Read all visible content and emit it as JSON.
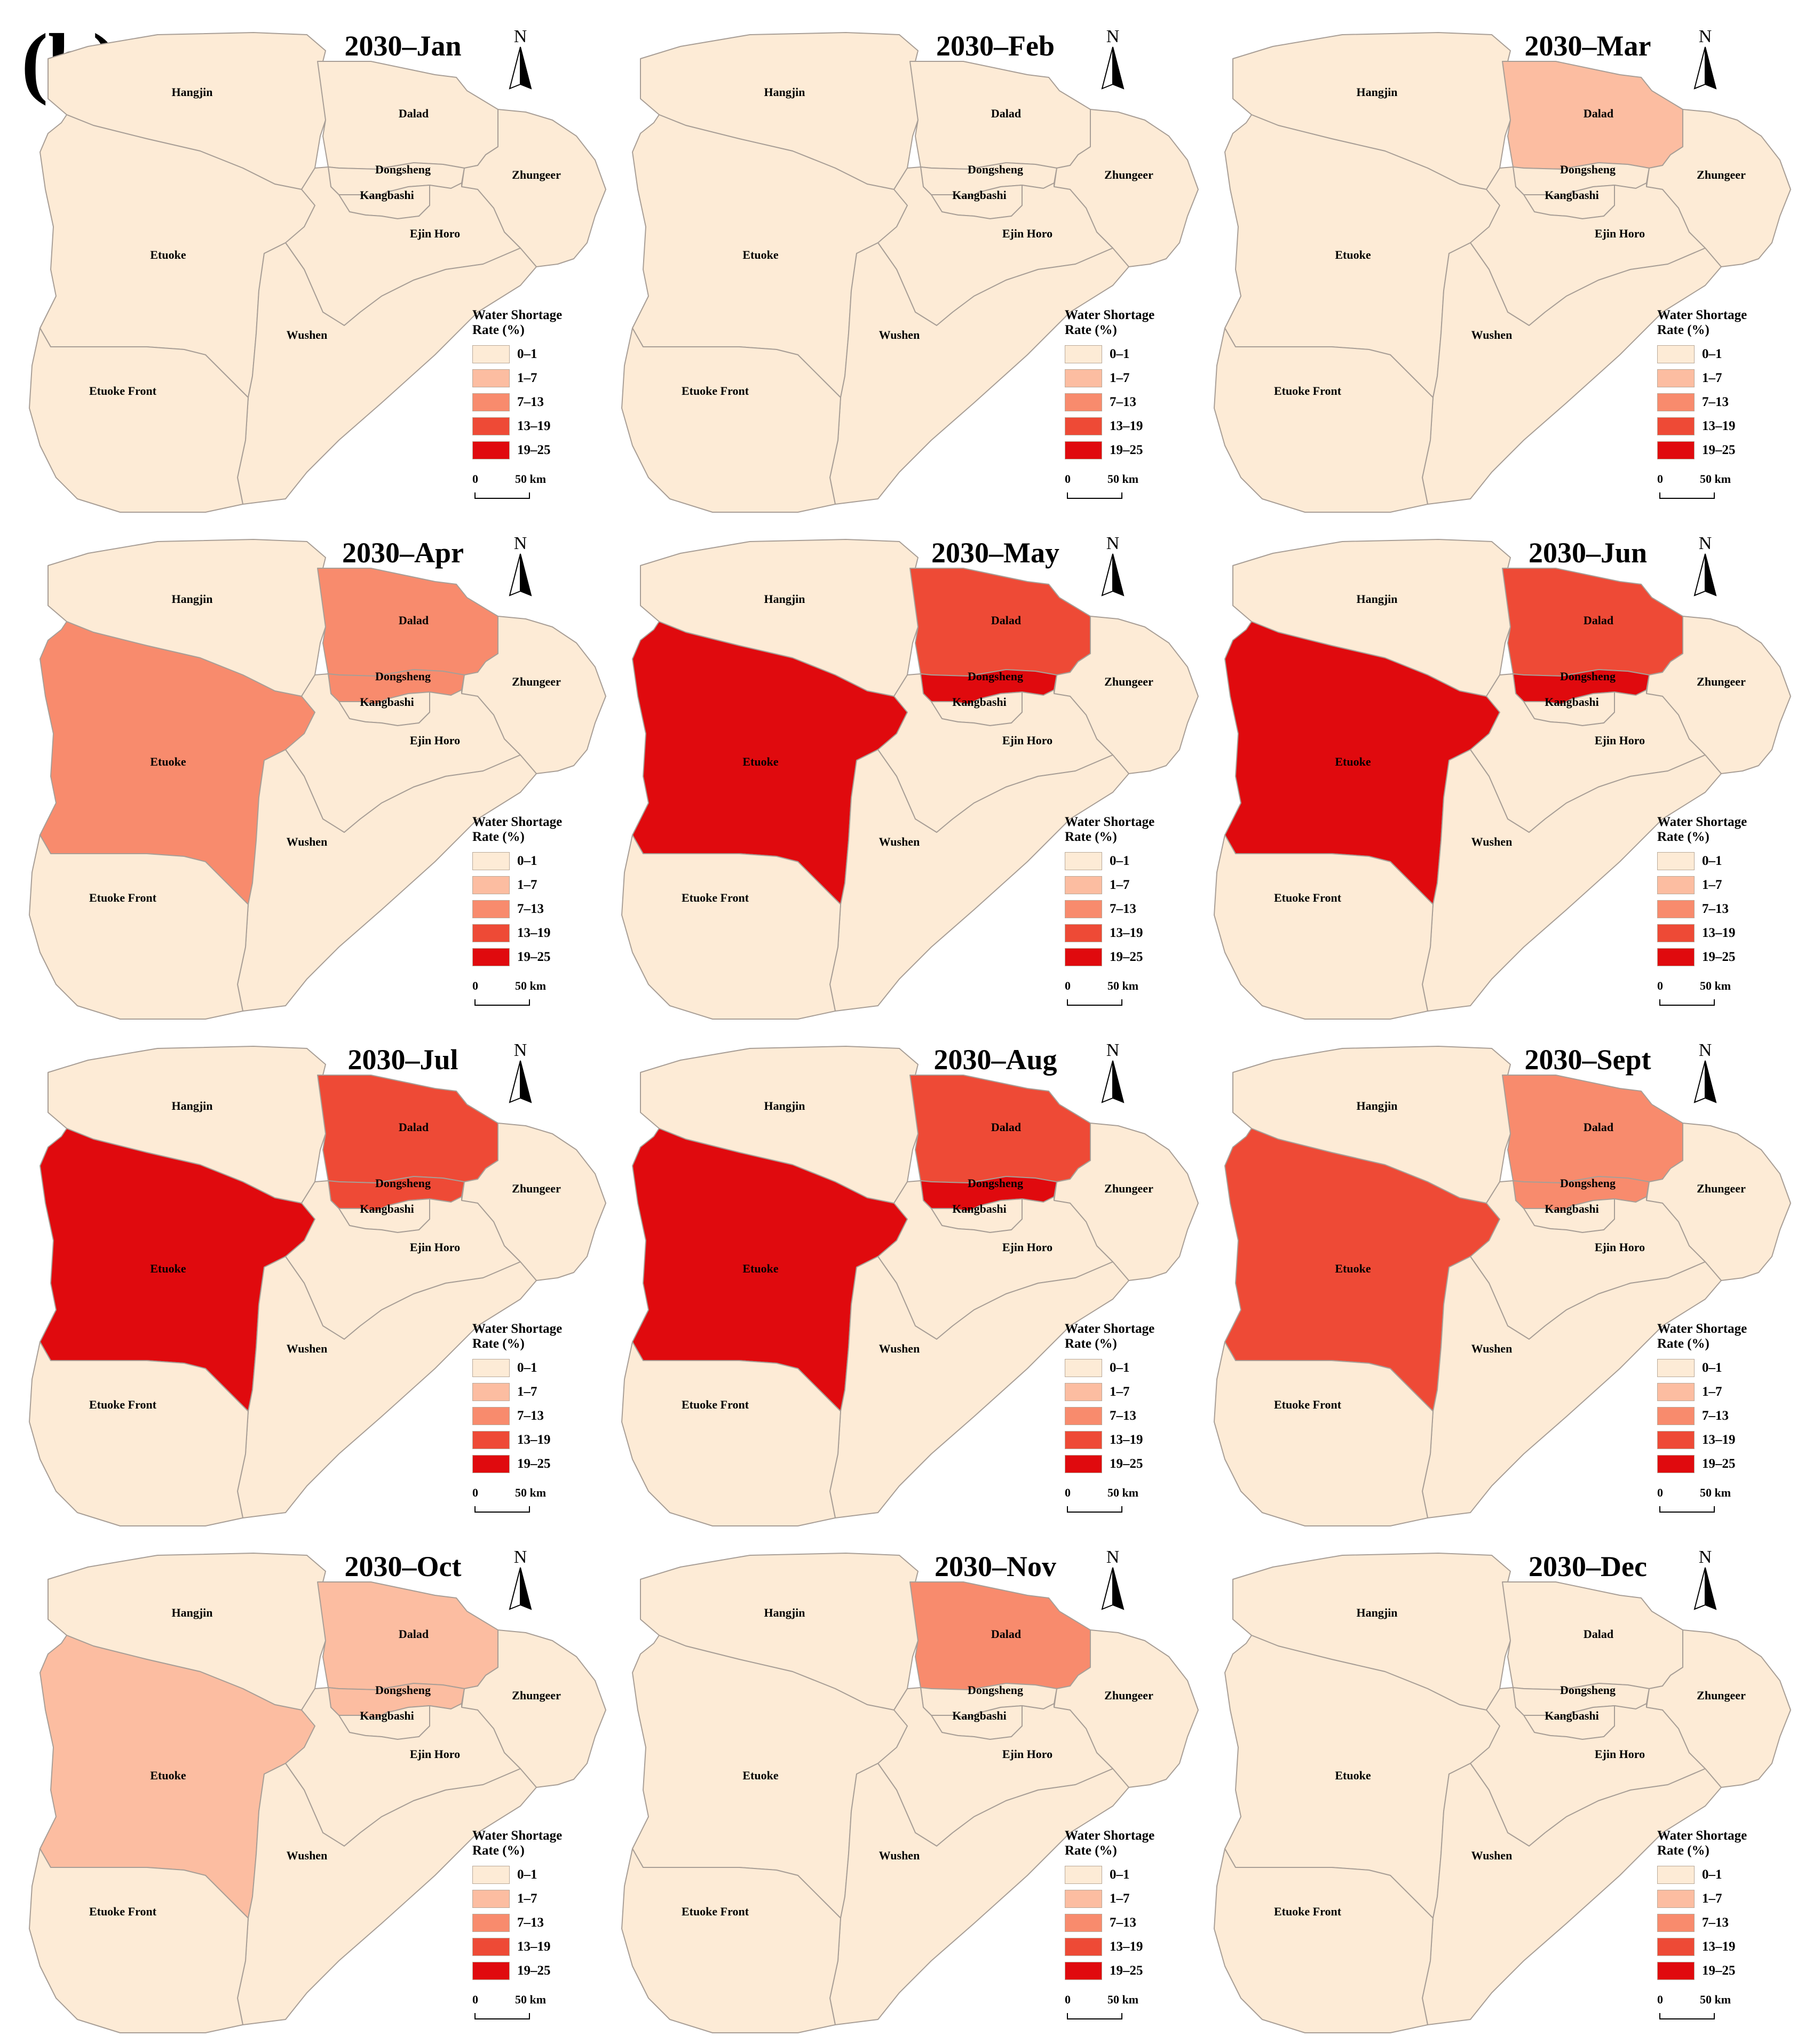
{
  "figure_label": "(b)",
  "legend": {
    "title_line1": "Water Shortage",
    "title_line2": "Rate (%)",
    "classes": [
      {
        "label": "0–1",
        "color": "#fdebd6"
      },
      {
        "label": "1–7",
        "color": "#fcbda1"
      },
      {
        "label": "7–13",
        "color": "#f88b6d"
      },
      {
        "label": "13–19",
        "color": "#ee4a36"
      },
      {
        "label": "19–25",
        "color": "#e00a0e"
      }
    ]
  },
  "scale_bar": {
    "zero": "0",
    "max": "50",
    "unit": "km"
  },
  "north_label": "N",
  "counties": [
    "Hangjin",
    "Dalad",
    "Zhungeer",
    "Dongsheng",
    "Kangbashi",
    "Ejin Horo",
    "Etuoke",
    "Wushen",
    "Etuoke Front"
  ],
  "county_labels": {
    "Hangjin": "Hangjin",
    "Dalad": "Dalad",
    "Zhungeer": "Zhungeer",
    "Dongsheng": "Dongsheng",
    "Kangbashi": "Kangbashi",
    "Ejin Horo": "Ejin Horo",
    "Etuoke": "Etuoke",
    "Wushen": "Wushen",
    "Etuoke Front": "Etuoke Front"
  },
  "panels": [
    {
      "title": "2030–Jan",
      "classes": {
        "Dalad": 0,
        "Dongsheng": 0,
        "Etuoke": 0
      }
    },
    {
      "title": "2030–Feb",
      "classes": {
        "Dalad": 0,
        "Dongsheng": 0,
        "Etuoke": 0
      }
    },
    {
      "title": "2030–Mar",
      "classes": {
        "Dalad": 1,
        "Dongsheng": 0,
        "Etuoke": 0
      }
    },
    {
      "title": "2030–Apr",
      "classes": {
        "Dalad": 2,
        "Dongsheng": 2,
        "Etuoke": 2
      }
    },
    {
      "title": "2030–May",
      "classes": {
        "Dalad": 3,
        "Dongsheng": 4,
        "Etuoke": 4
      }
    },
    {
      "title": "2030–Jun",
      "classes": {
        "Dalad": 3,
        "Dongsheng": 4,
        "Etuoke": 4
      }
    },
    {
      "title": "2030–Jul",
      "classes": {
        "Dalad": 3,
        "Dongsheng": 3,
        "Etuoke": 4
      }
    },
    {
      "title": "2030–Aug",
      "classes": {
        "Dalad": 3,
        "Dongsheng": 4,
        "Etuoke": 4
      }
    },
    {
      "title": "2030–Sept",
      "classes": {
        "Dalad": 2,
        "Dongsheng": 2,
        "Etuoke": 3
      }
    },
    {
      "title": "2030–Oct",
      "classes": {
        "Dalad": 1,
        "Dongsheng": 1,
        "Etuoke": 1
      }
    },
    {
      "title": "2030–Nov",
      "classes": {
        "Dalad": 2,
        "Dongsheng": 0,
        "Etuoke": 0
      }
    },
    {
      "title": "2030–Dec",
      "classes": {
        "Dalad": 0,
        "Dongsheng": 0,
        "Etuoke": 0
      }
    }
  ]
}
